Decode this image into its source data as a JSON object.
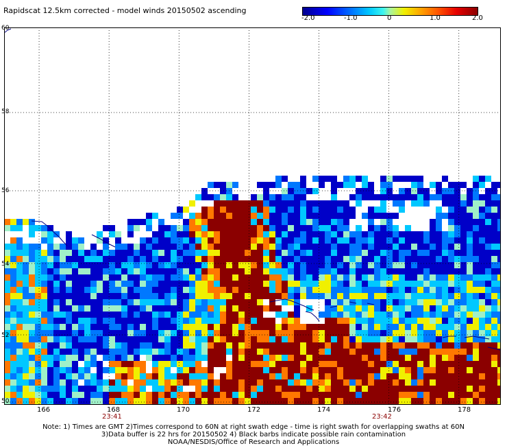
{
  "title": "Rapidscat 12.5km corrected - model winds 20150502 ascending",
  "colorbar": {
    "ticks": [
      "-2.0",
      "-1.0",
      "0",
      "1.0",
      "2.0"
    ],
    "min": -2.0,
    "max": 2.0
  },
  "map": {
    "lon_range": [
      165.0,
      179.2
    ],
    "lat_range": [
      50.0,
      60.0
    ],
    "lat_labels": [
      "60",
      "58",
      "56",
      "54",
      "52",
      "50"
    ],
    "lat_values": [
      60,
      58,
      56,
      54,
      52,
      50
    ],
    "lon_labels": [
      "166",
      "168",
      "170",
      "172",
      "174",
      "176",
      "178"
    ],
    "lon_values": [
      166,
      168,
      170,
      172,
      174,
      176,
      178
    ],
    "time_labels": [
      {
        "text": "23:41",
        "lon": 168.0
      },
      {
        "text": "23:42",
        "lon": 176.0
      }
    ],
    "colors": {
      "very_negative": "#0000c8",
      "negative": "#0078ff",
      "slightly_negative": "#00c8ff",
      "neutral": "#a0f0c8",
      "slightly_positive": "#f0f000",
      "positive": "#ff7800",
      "very_positive": "#8b0000",
      "coast": "#000080"
    }
  },
  "notes": {
    "line1": "Note: 1) Times are GMT 2)Times correspond to 60N at right swath edge - time is right swath for overlapping swaths at 60N",
    "line2": "3)Data buffer is 22 hrs for 20150502 4) Black barbs indicate possible rain contamination",
    "line3": "NOAA/NESDIS/Office of Research and Applications"
  }
}
